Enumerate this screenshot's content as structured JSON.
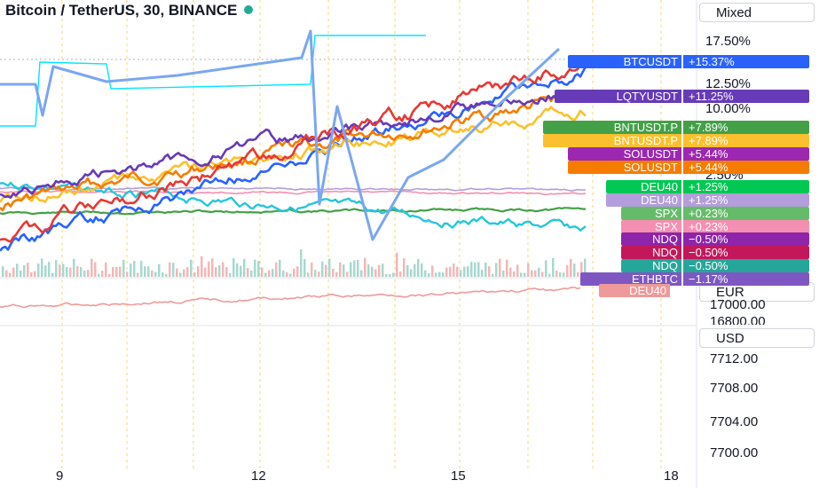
{
  "header": {
    "title": "Bitcoin / TetherUS, 30, BINANCE",
    "status_color": "#22ab94"
  },
  "right_panel": {
    "scale_mode": "Mixed",
    "currency_1": "EUR",
    "currency_2": "USD",
    "pct_ticks": [
      {
        "label": "17.50%",
        "value": 17.5
      },
      {
        "label": "12.50%",
        "value": 12.5
      },
      {
        "label": "10.00%",
        "value": 10.0
      },
      {
        "label": "2.50%",
        "value": 2.5
      }
    ],
    "eur_ticks": [
      "17000.00",
      "16800.00"
    ],
    "usd_ticks": [
      "7712.00",
      "7708.00",
      "7704.00",
      "7700.00"
    ]
  },
  "x_ticks": [
    "9",
    "12",
    "15",
    "18"
  ],
  "tags": [
    {
      "symbol": "BTCUSDT",
      "value": "+15.37%",
      "color": "#2962ff"
    },
    {
      "symbol": "LQTYUSDT",
      "value": "+11.25%",
      "color": "#673ab7"
    },
    {
      "symbol": "BNTUSDT.P",
      "value": "+7.89%",
      "color": "#43a047"
    },
    {
      "symbol": "BNTUSDT.P",
      "value": "+7.89%",
      "color": "#fbc02d"
    },
    {
      "symbol": "SOLUSDT",
      "value": "+5.44%",
      "color": "#9c27b0"
    },
    {
      "symbol": "SOLUSDT",
      "value": "+5.44%",
      "color": "#f57c00"
    },
    {
      "symbol": "DEU40",
      "value": "+1.25%",
      "color": "#00c853"
    },
    {
      "symbol": "DEU40",
      "value": "+1.25%",
      "color": "#b39ddb"
    },
    {
      "symbol": "SPX",
      "value": "+0.23%",
      "color": "#66bb6a"
    },
    {
      "symbol": "SPX",
      "value": "+0.23%",
      "color": "#f48fb1"
    },
    {
      "symbol": "NDQ",
      "value": "−0.50%",
      "color": "#8e24aa"
    },
    {
      "symbol": "NDQ",
      "value": "−0.50%",
      "color": "#c2185b"
    },
    {
      "symbol": "NDQ",
      "value": "−0.50%",
      "color": "#26a69a"
    },
    {
      "symbol": "ETHBTC",
      "value": "−1.17%",
      "color": "#7e57c2"
    }
  ],
  "deu40_pane_tag": {
    "symbol": "DEU40",
    "color": "#ef9a9a"
  },
  "chart_data": {
    "type": "line",
    "x": [
      "9",
      "12",
      "15",
      "18"
    ],
    "y_axis_percent_ticks": [
      17.5,
      12.5,
      10.0,
      2.5
    ],
    "series": [
      {
        "name": "BTCUSDT",
        "last_change_pct": 15.37,
        "color": "#2962ff"
      },
      {
        "name": "LQTYUSDT",
        "last_change_pct": 11.25,
        "color": "#673ab7"
      },
      {
        "name": "BNTUSDT.P",
        "last_change_pct": 7.89,
        "color": "#fbc02d"
      },
      {
        "name": "SOLUSDT",
        "last_change_pct": 5.44,
        "color": "#f57c00"
      },
      {
        "name": "DEU40",
        "last_change_pct": 1.25,
        "color": "#b39ddb"
      },
      {
        "name": "SPX",
        "last_change_pct": 0.23,
        "color": "#43a047"
      },
      {
        "name": "NDQ",
        "last_change_pct": -0.5,
        "color": "#26c6da"
      },
      {
        "name": "ETHBTC",
        "last_change_pct": -1.17,
        "color": "#e53935"
      }
    ],
    "eur_pane": {
      "ticks": [
        17000.0,
        16800.0
      ],
      "series": "DEU40"
    },
    "usd_pane": {
      "ticks": [
        7712.0,
        7708.0,
        7704.0,
        7700.0
      ]
    },
    "grid": false
  }
}
